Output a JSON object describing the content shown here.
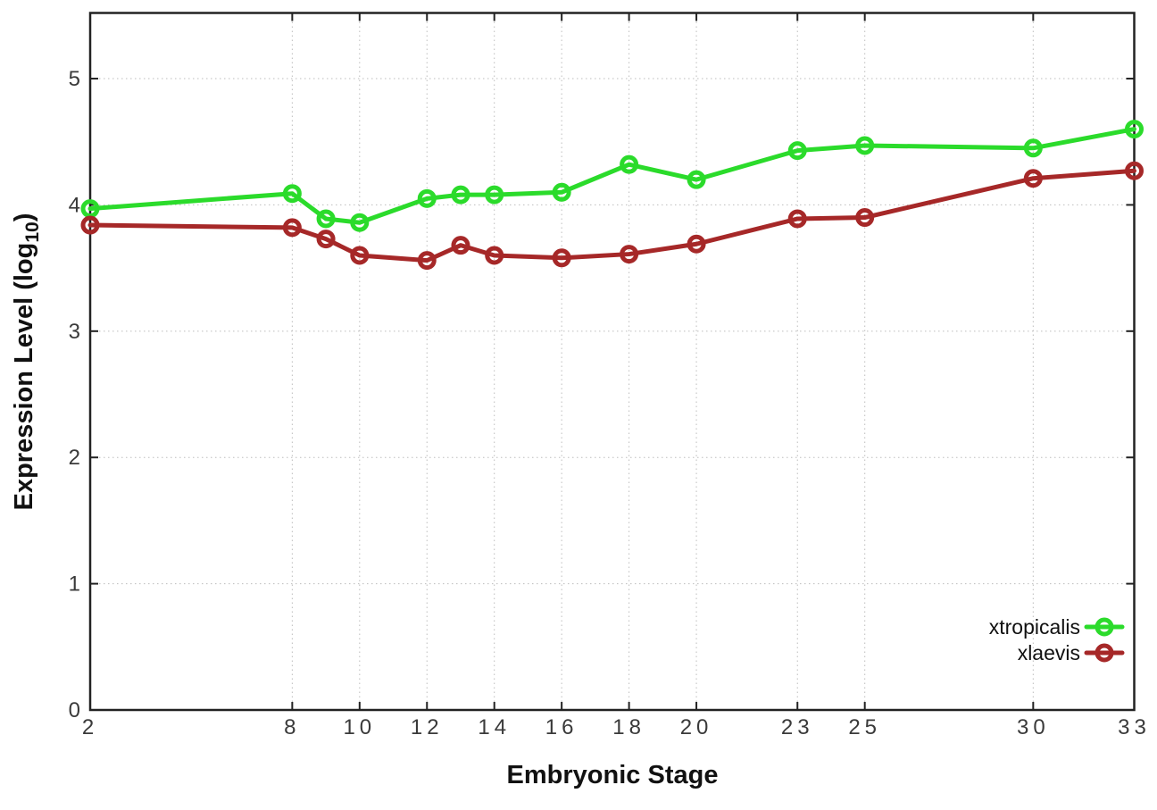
{
  "chart_data": {
    "type": "line",
    "title": "",
    "xlabel": "Embryonic Stage",
    "ylabel": "Expression Level (log10)",
    "ylabel_parts": {
      "prefix": "Expression Level (log",
      "sub": "10",
      "suffix": ")"
    },
    "x_tick_labels": [
      2,
      8,
      10,
      12,
      14,
      16,
      18,
      20,
      23,
      25,
      30,
      33
    ],
    "y_tick_labels": [
      0,
      1,
      2,
      3,
      4,
      5
    ],
    "xlim": [
      2,
      33
    ],
    "ylim": [
      0,
      5.52
    ],
    "grid": "dotted",
    "legend_position": "inside-bottom-right",
    "x": [
      2,
      8,
      9,
      10,
      12,
      13,
      14,
      16,
      18,
      20,
      23,
      25,
      30,
      33
    ],
    "series": [
      {
        "name": "xtropicalis",
        "color": "#2bdb2b",
        "values": [
          3.97,
          4.09,
          3.89,
          3.86,
          4.05,
          4.08,
          4.08,
          4.1,
          4.32,
          4.2,
          4.43,
          4.47,
          4.45,
          4.6
        ]
      },
      {
        "name": "xlaevis",
        "color": "#a62828",
        "values": [
          3.84,
          3.82,
          3.73,
          3.6,
          3.56,
          3.68,
          3.6,
          3.58,
          3.61,
          3.69,
          3.89,
          3.9,
          4.21,
          4.27
        ]
      }
    ],
    "colors": {
      "grid": "#bdbdbd",
      "axis": "#222222",
      "tick_text": "#3a3a3a"
    }
  }
}
